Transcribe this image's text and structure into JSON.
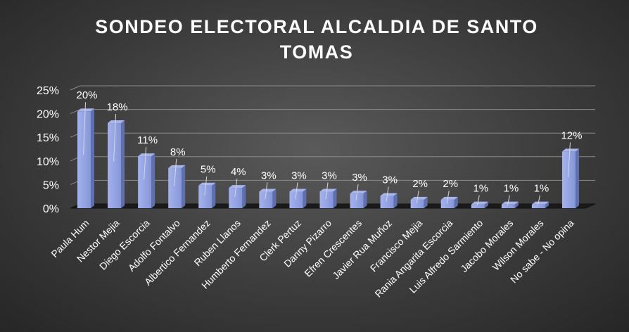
{
  "chart_data": {
    "type": "bar",
    "title_line1": "SONDEO ELECTORAL ALCALDIA DE SANTO",
    "title_line2": "TOMAS",
    "categories": [
      "Paula Hum",
      "Nestor Mejia",
      "Diego Escorcia",
      "Adolfo Fontalvo",
      "Albertico Fernandez",
      "Ruben Llanos",
      "Humberto Fernandez",
      "Clerk Pertuz",
      "Danny Pizarro",
      "Efren Crescentes",
      "Javier Rua Muñoz",
      "Francisco Mejia",
      "Rania Angarita Escorcia",
      "Luis Alfredo Sarmiento",
      "Jacobo Morales",
      "Wilson Morales",
      "No sabe - No opina"
    ],
    "values": [
      0.2,
      0.18,
      0.11,
      0.08,
      0.05,
      0.04,
      0.03,
      0.03,
      0.03,
      0.03,
      0.03,
      0.02,
      0.02,
      0.01,
      0.01,
      0.01,
      0.12
    ],
    "bar_heights": [
      0.205,
      0.18,
      0.11,
      0.085,
      0.048,
      0.043,
      0.035,
      0.035,
      0.035,
      0.031,
      0.026,
      0.018,
      0.018,
      0.008,
      0.008,
      0.008,
      0.12
    ],
    "data_labels": [
      "20%",
      "18%",
      "11%",
      "8%",
      "5%",
      "4%",
      "3%",
      "3%",
      "3%",
      "3%",
      "3%",
      "2%",
      "2%",
      "1%",
      "1%",
      "1%",
      "12%"
    ],
    "y_ticks": [
      {
        "value": 0,
        "label": "0%"
      },
      {
        "value": 0.05,
        "label": "5%"
      },
      {
        "value": 0.1,
        "label": "10%"
      },
      {
        "value": 0.15,
        "label": "15%"
      },
      {
        "value": 0.2,
        "label": "20%"
      },
      {
        "value": 0.25,
        "label": "25%"
      }
    ],
    "ylim": [
      0,
      0.25
    ],
    "grid": true,
    "legend": "none",
    "bar_color": "#8596d8",
    "text_color": "#ffffff",
    "grid_color": "#8a8a8a"
  }
}
